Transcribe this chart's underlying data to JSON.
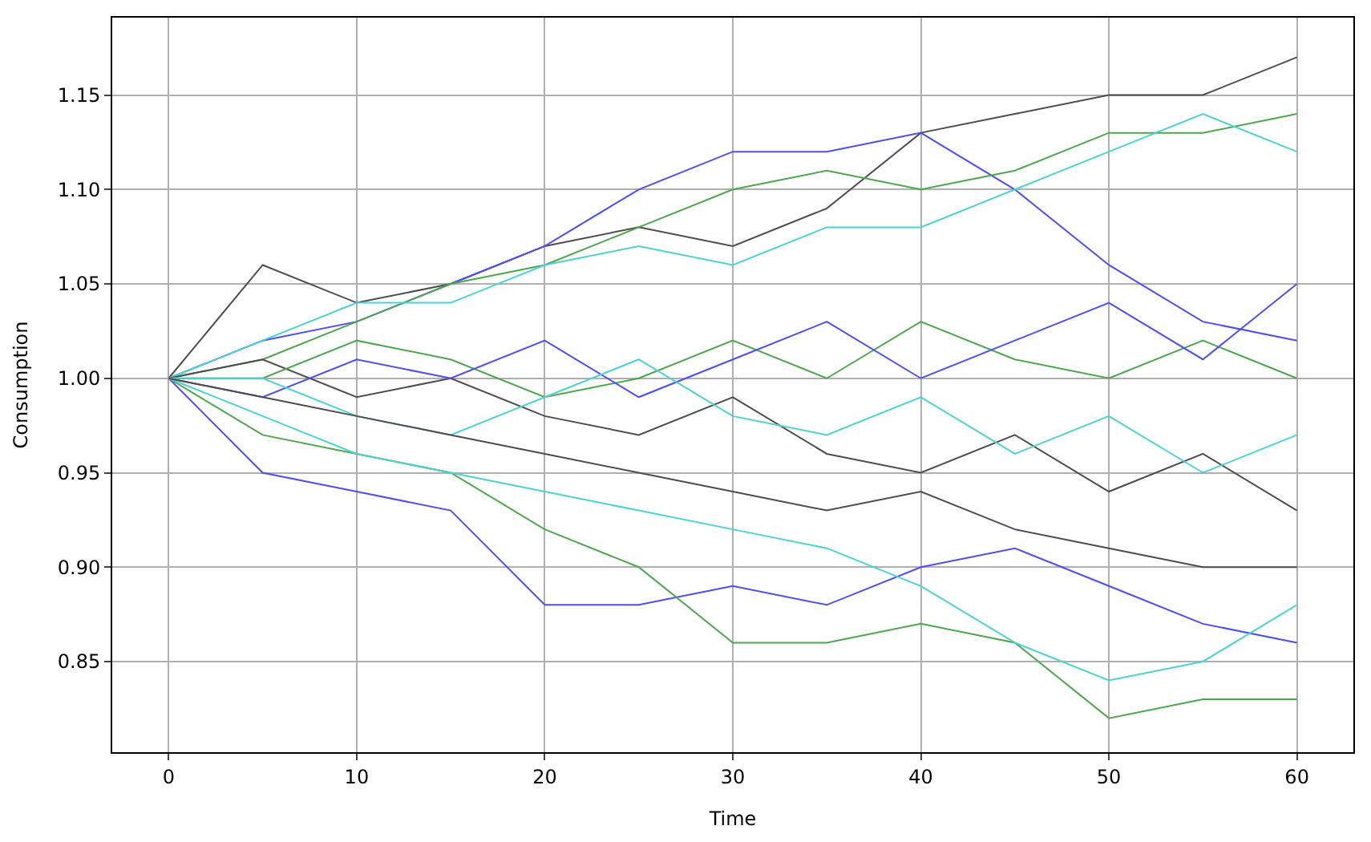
{
  "chart_data": {
    "type": "line",
    "xlabel": "Time",
    "ylabel": "Consumption",
    "x": [
      0,
      5,
      10,
      15,
      20,
      25,
      30,
      35,
      40,
      45,
      50,
      55,
      60
    ],
    "series": [
      {
        "color": "#4d4d4d",
        "values": [
          1.0,
          1.06,
          1.04,
          1.05,
          1.07,
          1.08,
          1.07,
          1.09,
          1.13,
          1.14,
          1.15,
          1.15,
          1.17
        ]
      },
      {
        "color": "#4d4dff",
        "values": [
          1.0,
          1.02,
          1.03,
          1.05,
          1.07,
          1.1,
          1.12,
          1.12,
          1.13,
          1.1,
          1.06,
          1.03,
          1.02
        ]
      },
      {
        "color": "#4da74d",
        "values": [
          1.0,
          1.01,
          1.03,
          1.05,
          1.06,
          1.08,
          1.1,
          1.11,
          1.1,
          1.11,
          1.13,
          1.13,
          1.14
        ]
      },
      {
        "color": "#4dd2d2",
        "values": [
          1.0,
          1.02,
          1.04,
          1.04,
          1.06,
          1.07,
          1.06,
          1.08,
          1.08,
          1.1,
          1.12,
          1.14,
          1.12
        ]
      },
      {
        "color": "#4d4dff",
        "values": [
          1.0,
          0.95,
          0.94,
          0.93,
          0.88,
          0.88,
          0.89,
          0.88,
          0.9,
          0.91,
          0.89,
          0.87,
          0.86
        ]
      },
      {
        "color": "#4da74d",
        "values": [
          1.0,
          0.97,
          0.96,
          0.95,
          0.92,
          0.9,
          0.86,
          0.86,
          0.87,
          0.86,
          0.82,
          0.83,
          0.83
        ]
      },
      {
        "color": "#4dd2d2",
        "values": [
          1.0,
          0.98,
          0.96,
          0.95,
          0.94,
          0.93,
          0.92,
          0.91,
          0.89,
          0.86,
          0.84,
          0.85,
          0.88
        ]
      },
      {
        "color": "#4d4d4d",
        "values": [
          1.0,
          1.01,
          0.99,
          1.0,
          0.98,
          0.97,
          0.99,
          0.96,
          0.95,
          0.97,
          0.94,
          0.96,
          0.93
        ]
      },
      {
        "color": "#4da74d",
        "values": [
          1.0,
          1.0,
          1.02,
          1.01,
          0.99,
          1.0,
          1.02,
          1.0,
          1.03,
          1.01,
          1.0,
          1.02,
          1.0
        ]
      },
      {
        "color": "#4d4dff",
        "values": [
          1.0,
          0.99,
          1.01,
          1.0,
          1.02,
          0.99,
          1.01,
          1.03,
          1.0,
          1.02,
          1.04,
          1.01,
          1.05
        ]
      },
      {
        "color": "#4dd2d2",
        "values": [
          1.0,
          1.0,
          0.98,
          0.97,
          0.99,
          1.01,
          0.98,
          0.97,
          0.99,
          0.96,
          0.98,
          0.95,
          0.97
        ]
      },
      {
        "color": "#4d4d4d",
        "values": [
          1.0,
          0.99,
          0.98,
          0.97,
          0.96,
          0.95,
          0.94,
          0.93,
          0.94,
          0.92,
          0.91,
          0.9,
          0.9
        ]
      }
    ],
    "xlim": [
      -3,
      63
    ],
    "ylim": [
      0.802,
      1.191
    ],
    "xticks": [
      0,
      10,
      20,
      30,
      40,
      50,
      60
    ],
    "yticks": [
      {
        "value": 0.85,
        "label": "0.85"
      },
      {
        "value": 0.9,
        "label": "0.90"
      },
      {
        "value": 0.95,
        "label": "0.95"
      },
      {
        "value": 1.0,
        "label": "1.00"
      },
      {
        "value": 1.05,
        "label": "1.05"
      },
      {
        "value": 1.1,
        "label": "1.10"
      },
      {
        "value": 1.15,
        "label": "1.15"
      }
    ],
    "grid": true,
    "marker": "none",
    "line_style": "solid"
  }
}
